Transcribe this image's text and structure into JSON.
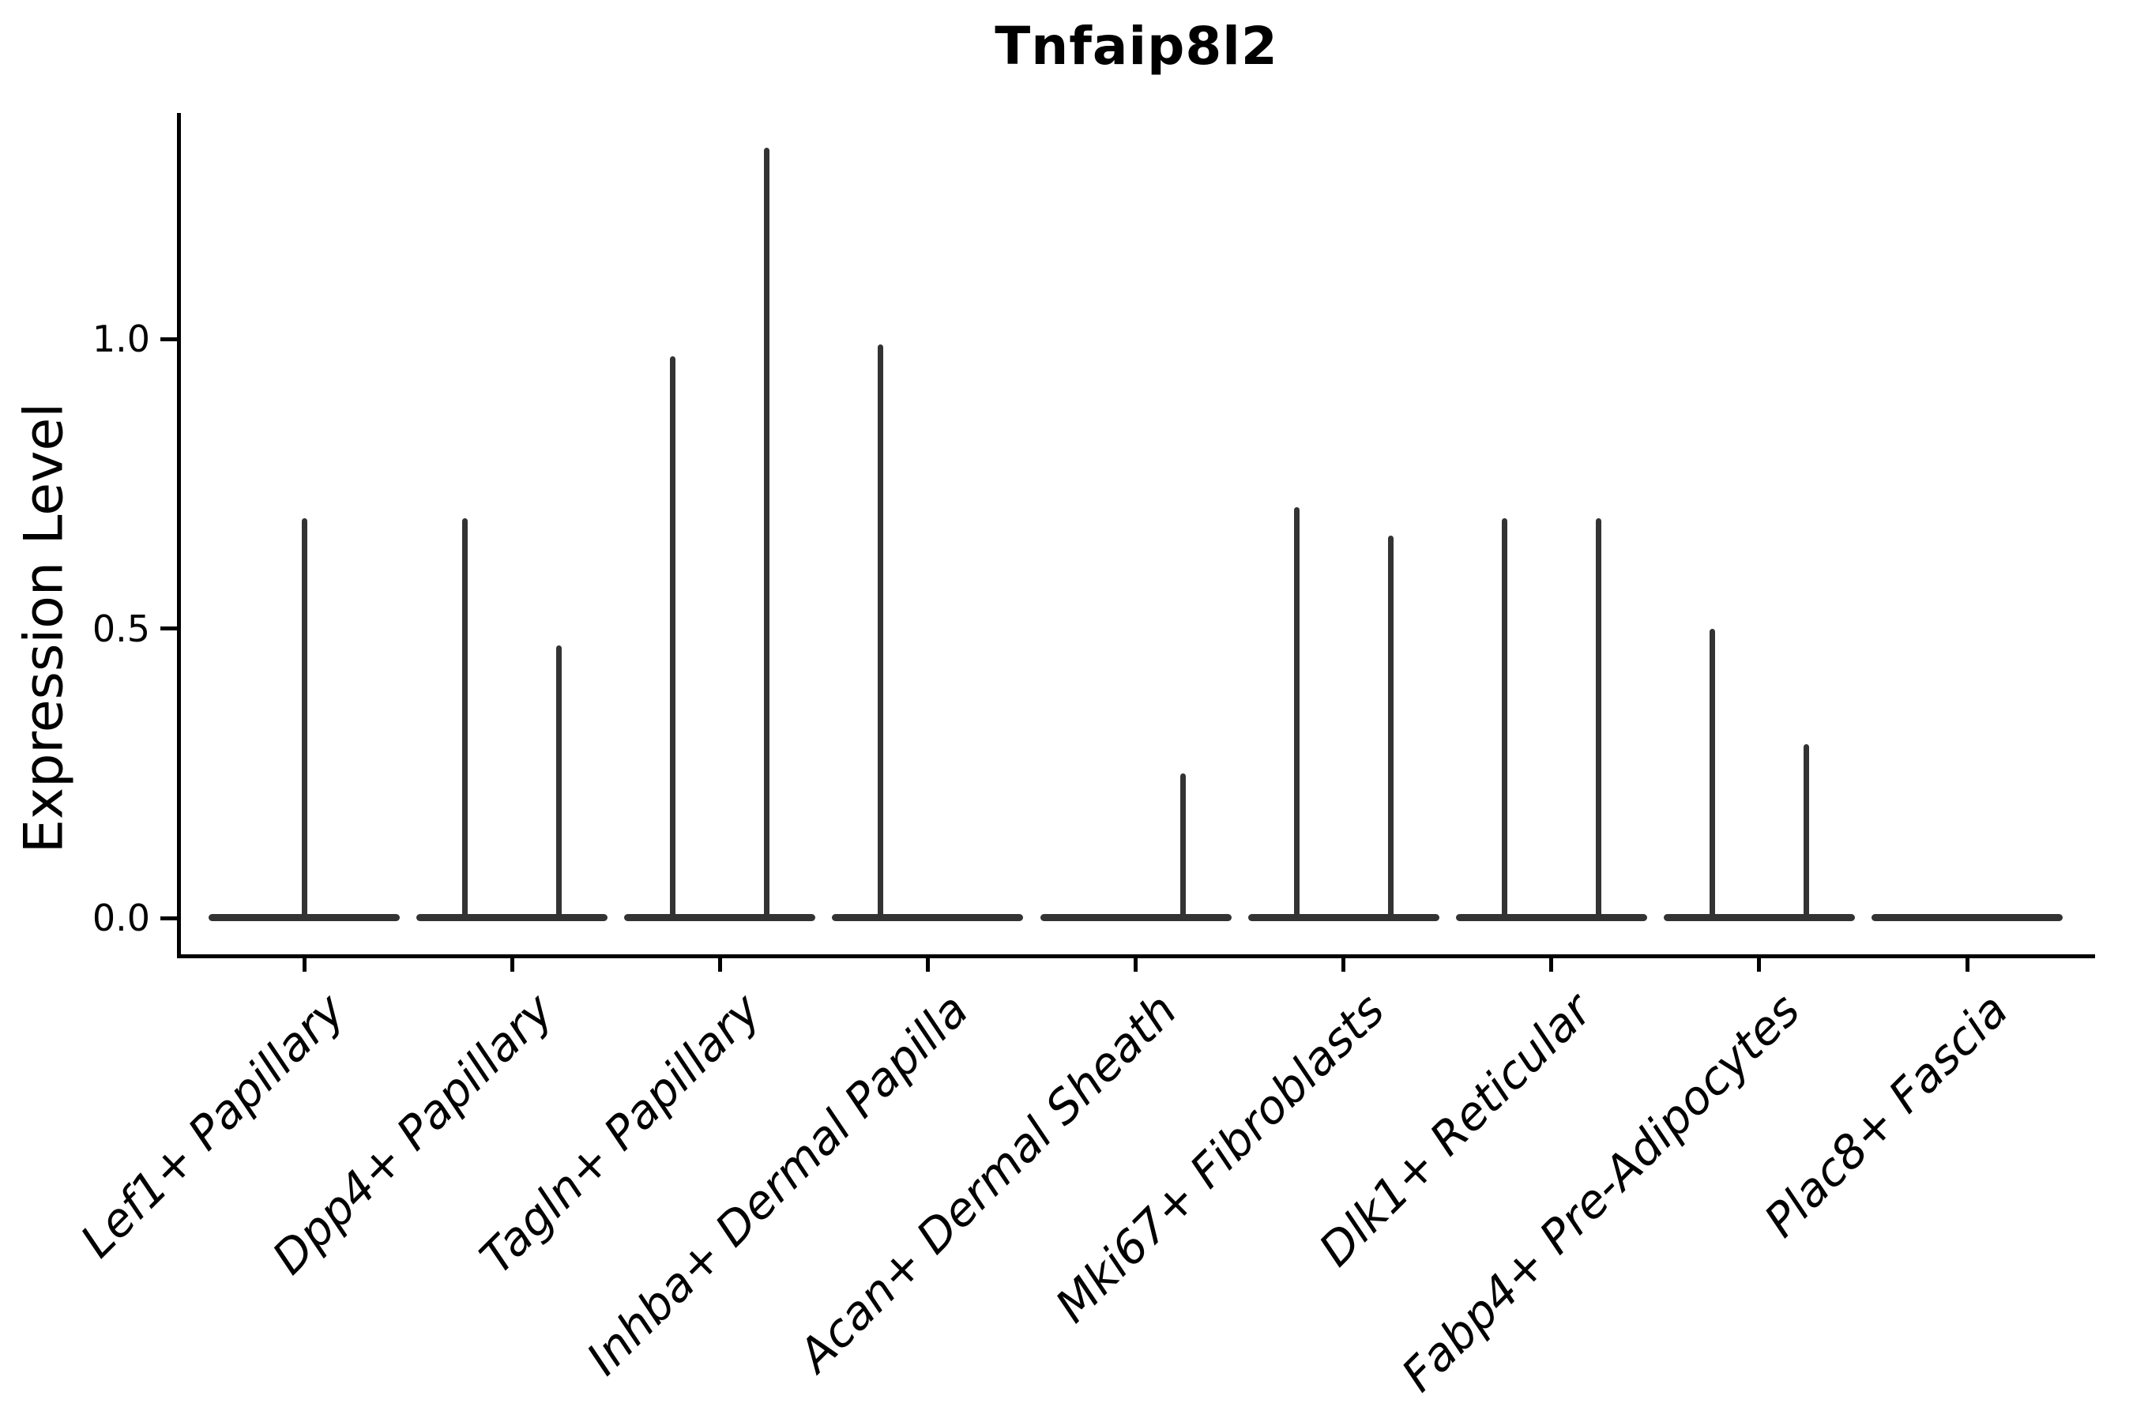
{
  "chart_data": {
    "type": "violin",
    "title": "Tnfaip8l2",
    "ylabel": "Expression Level",
    "xlabel": "",
    "ytick_labels": [
      "0.0",
      "0.5",
      "1.0"
    ],
    "ytick_values": [
      0.0,
      0.5,
      1.0
    ],
    "ylim": [
      -0.06,
      1.39
    ],
    "grid": false,
    "legend": "none",
    "categories": [
      "Lef1+ Papillary",
      "Dpp4+ Papillary",
      "Tagln+ Papillary",
      "Inhba+ Dermal Papilla",
      "Acan+ Dermal Sheath",
      "Mki67+ Fibroblasts",
      "Dlk1+ Reticular",
      "Fabp4+ Pre-Adipocytes",
      "Plac8+ Fascia"
    ],
    "distribution_note": "Each violin is a flat disc at expression 0 (most cells zero) with a thin vertical spike reaching the maximum expression value; categories contain two side-by-side violins (left/right) unless slot is 'full'.",
    "violins": [
      {
        "category_index": 0,
        "slot": "full",
        "max_expression": 0.69
      },
      {
        "category_index": 1,
        "slot": "left",
        "max_expression": 0.69
      },
      {
        "category_index": 1,
        "slot": "right",
        "max_expression": 0.47
      },
      {
        "category_index": 2,
        "slot": "left",
        "max_expression": 0.97
      },
      {
        "category_index": 2,
        "slot": "right",
        "max_expression": 1.33
      },
      {
        "category_index": 3,
        "slot": "left",
        "max_expression": 0.99
      },
      {
        "category_index": 3,
        "slot": "right",
        "max_expression": 0
      },
      {
        "category_index": 4,
        "slot": "left",
        "max_expression": 0
      },
      {
        "category_index": 4,
        "slot": "right",
        "max_expression": 0.25
      },
      {
        "category_index": 5,
        "slot": "left",
        "max_expression": 0.71
      },
      {
        "category_index": 5,
        "slot": "right",
        "max_expression": 0.66
      },
      {
        "category_index": 6,
        "slot": "left",
        "max_expression": 0.69
      },
      {
        "category_index": 6,
        "slot": "right",
        "max_expression": 0.69
      },
      {
        "category_index": 7,
        "slot": "left",
        "max_expression": 0.5
      },
      {
        "category_index": 7,
        "slot": "right",
        "max_expression": 0.3
      },
      {
        "category_index": 8,
        "slot": "full",
        "max_expression": 0
      }
    ],
    "colors": {
      "violin_fill": "#333333",
      "axis": "#000000",
      "background": "#ffffff"
    }
  }
}
